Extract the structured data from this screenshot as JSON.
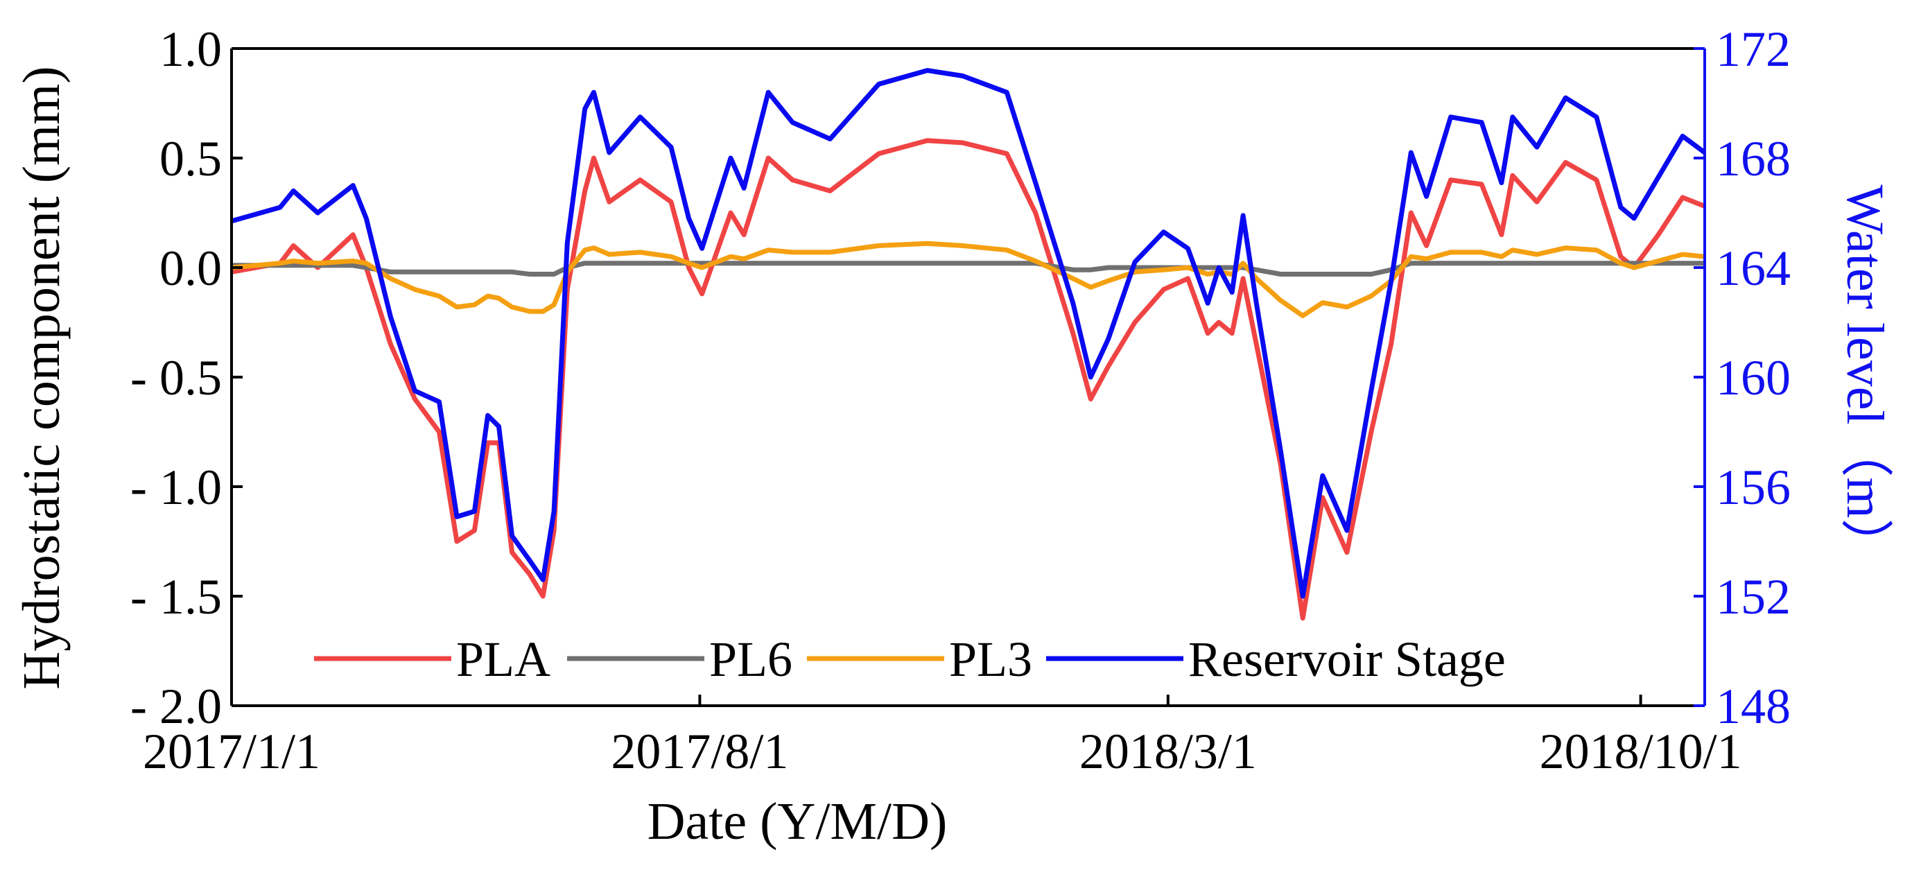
{
  "chart_data": {
    "type": "line",
    "xlabel": "Date (Y/M/D)",
    "ylabel": "Hydrostatic component (mm)",
    "y2label": "Water level（m）",
    "x": [
      "2017/1/1",
      "2017/1/23",
      "2017/1/29",
      "2017/2/9",
      "2017/2/25",
      "2017/3/3",
      "2017/3/14",
      "2017/3/25",
      "2017/4/5",
      "2017/4/13",
      "2017/4/21",
      "2017/4/27",
      "2017/5/2",
      "2017/5/8",
      "2017/5/16",
      "2017/5/22",
      "2017/5/27",
      "2017/6/2",
      "2017/6/10",
      "2017/6/14",
      "2017/6/21",
      "2017/7/5",
      "2017/7/19",
      "2017/7/27",
      "2017/8/2",
      "2017/8/15",
      "2017/8/21",
      "2017/9/1",
      "2017/9/12",
      "2017/9/29",
      "2017/10/21",
      "2017/11/12",
      "2017/11/28",
      "2017/12/18",
      "2017/12/31",
      "2018/1/17",
      "2018/1/25",
      "2018/2/2",
      "2018/2/14",
      "2018/2/27",
      "2018/3/10",
      "2018/3/19",
      "2018/3/24",
      "2018/3/30",
      "2018/4/4",
      "2018/4/10",
      "2018/4/21",
      "2018/5/1",
      "2018/5/10",
      "2018/5/21",
      "2018/6/1",
      "2018/6/10",
      "2018/6/19",
      "2018/6/26",
      "2018/7/7",
      "2018/7/21",
      "2018/7/30",
      "2018/8/4",
      "2018/8/15",
      "2018/8/28",
      "2018/9/11",
      "2018/9/22",
      "2018/9/28",
      "2018/10/9",
      "2018/10/20",
      "2018/10/30"
    ],
    "xlim": [
      "2017/1/1",
      "2018/10/30"
    ],
    "xticks": [
      "2017/1/1",
      "2017/8/1",
      "2018/3/1",
      "2018/10/1"
    ],
    "ylim": [
      -2,
      1
    ],
    "yticks": [
      {
        "value": -2,
        "label": "- 2.0"
      },
      {
        "value": -1.5,
        "label": "- 1.5"
      },
      {
        "value": -1,
        "label": "- 1.0"
      },
      {
        "value": -0.5,
        "label": "- 0.5"
      },
      {
        "value": 0,
        "label": "0.0"
      },
      0.5,
      {
        "value": 1,
        "label": "1.0"
      }
    ],
    "y2lim": [
      148,
      172
    ],
    "y2ticks": [
      148,
      152,
      156,
      160,
      164,
      168,
      172
    ],
    "y2color": "#1010f0",
    "legend": "bottom",
    "series": [
      {
        "name": "PLA",
        "color": "#f04444",
        "values": [
          -0.02,
          0.02,
          0.1,
          0.0,
          0.15,
          0.0,
          -0.35,
          -0.6,
          -0.75,
          -1.25,
          -1.2,
          -0.8,
          -0.8,
          -1.3,
          -1.4,
          -1.5,
          -1.2,
          -0.1,
          0.35,
          0.5,
          0.3,
          0.4,
          0.3,
          0.0,
          -0.12,
          0.25,
          0.15,
          0.5,
          0.4,
          0.35,
          0.52,
          0.58,
          0.57,
          0.52,
          0.25,
          -0.3,
          -0.6,
          -0.45,
          -0.25,
          -0.1,
          -0.05,
          -0.3,
          -0.25,
          -0.3,
          -0.05,
          -0.35,
          -0.9,
          -1.6,
          -1.05,
          -1.3,
          -0.75,
          -0.35,
          0.25,
          0.1,
          0.4,
          0.38,
          0.15,
          0.42,
          0.3,
          0.48,
          0.4,
          0.05,
          0.0,
          0.15,
          0.32,
          0.28
        ]
      },
      {
        "name": "PL6",
        "color": "#707070",
        "values": [
          0.01,
          0.01,
          0.01,
          0.01,
          0.01,
          0.0,
          -0.02,
          -0.02,
          -0.02,
          -0.02,
          -0.02,
          -0.02,
          -0.02,
          -0.02,
          -0.03,
          -0.03,
          -0.03,
          0.0,
          0.02,
          0.02,
          0.02,
          0.02,
          0.02,
          0.02,
          0.02,
          0.02,
          0.02,
          0.02,
          0.02,
          0.02,
          0.02,
          0.02,
          0.02,
          0.02,
          0.02,
          -0.01,
          -0.01,
          0.0,
          0.0,
          0.0,
          0.0,
          0.0,
          0.0,
          0.0,
          0.0,
          -0.01,
          -0.03,
          -0.03,
          -0.03,
          -0.03,
          -0.03,
          -0.01,
          0.02,
          0.02,
          0.02,
          0.02,
          0.02,
          0.02,
          0.02,
          0.02,
          0.02,
          0.02,
          0.02,
          0.02,
          0.02,
          0.02
        ]
      },
      {
        "name": "PL3",
        "color": "#f5a011",
        "values": [
          0.0,
          0.02,
          0.03,
          0.02,
          0.03,
          0.02,
          -0.05,
          -0.1,
          -0.13,
          -0.18,
          -0.17,
          -0.13,
          -0.14,
          -0.18,
          -0.2,
          -0.2,
          -0.17,
          -0.02,
          0.08,
          0.09,
          0.06,
          0.07,
          0.05,
          0.02,
          0.0,
          0.05,
          0.04,
          0.08,
          0.07,
          0.07,
          0.1,
          0.11,
          0.1,
          0.08,
          0.03,
          -0.05,
          -0.09,
          -0.06,
          -0.02,
          -0.01,
          0.0,
          -0.03,
          -0.02,
          -0.03,
          0.02,
          -0.05,
          -0.15,
          -0.22,
          -0.16,
          -0.18,
          -0.13,
          -0.06,
          0.05,
          0.04,
          0.07,
          0.07,
          0.05,
          0.08,
          0.06,
          0.09,
          0.08,
          0.02,
          0.0,
          0.03,
          0.06,
          0.05
        ]
      },
      {
        "name": "Reservoir Stage",
        "color": "#0a0af0",
        "axis": "y2",
        "values": [
          165.7,
          166.2,
          166.8,
          166.0,
          167.0,
          165.8,
          162.2,
          159.5,
          159.1,
          154.9,
          155.1,
          158.6,
          158.2,
          154.2,
          153.3,
          152.6,
          155.1,
          164.9,
          169.8,
          170.4,
          168.2,
          169.5,
          168.4,
          165.8,
          164.7,
          168.0,
          166.9,
          170.4,
          169.3,
          168.7,
          170.7,
          171.2,
          171.0,
          170.4,
          167.1,
          162.7,
          160.0,
          161.4,
          164.2,
          165.3,
          164.7,
          162.7,
          164.0,
          163.1,
          165.9,
          162.7,
          157.3,
          152.0,
          156.4,
          154.4,
          159.5,
          163.5,
          168.2,
          166.6,
          169.5,
          169.3,
          167.1,
          169.5,
          168.4,
          170.2,
          169.5,
          166.2,
          165.8,
          167.3,
          168.8,
          168.2
        ]
      }
    ]
  }
}
